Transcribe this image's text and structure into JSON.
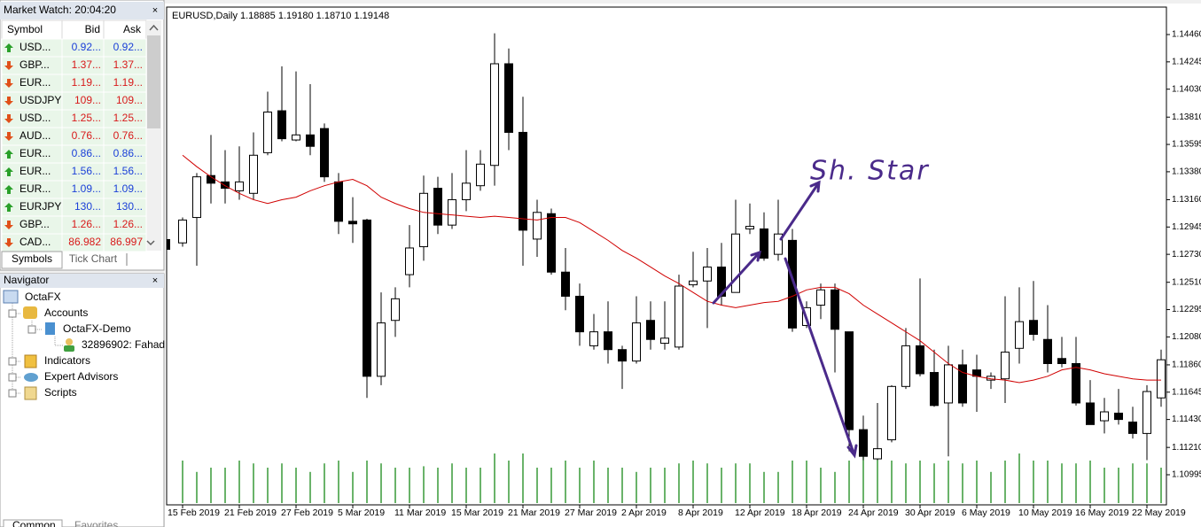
{
  "market_watch": {
    "title": "Market Watch: 20:04:20",
    "columns": [
      "Symbol",
      "Bid",
      "Ask"
    ],
    "rows": [
      {
        "symbol": "USD...",
        "bid": "0.92...",
        "ask": "0.92...",
        "direction": "up"
      },
      {
        "symbol": "GBP...",
        "bid": "1.37...",
        "ask": "1.37...",
        "direction": "down"
      },
      {
        "symbol": "EUR...",
        "bid": "1.19...",
        "ask": "1.19...",
        "direction": "down"
      },
      {
        "symbol": "USDJPY",
        "bid": "109...",
        "ask": "109...",
        "direction": "down"
      },
      {
        "symbol": "USD...",
        "bid": "1.25...",
        "ask": "1.25...",
        "direction": "down"
      },
      {
        "symbol": "AUD...",
        "bid": "0.76...",
        "ask": "0.76...",
        "direction": "down"
      },
      {
        "symbol": "EUR...",
        "bid": "0.86...",
        "ask": "0.86...",
        "direction": "up"
      },
      {
        "symbol": "EUR...",
        "bid": "1.56...",
        "ask": "1.56...",
        "direction": "up"
      },
      {
        "symbol": "EUR...",
        "bid": "1.09...",
        "ask": "1.09...",
        "direction": "up"
      },
      {
        "symbol": "EURJPY",
        "bid": "130...",
        "ask": "130...",
        "direction": "up"
      },
      {
        "symbol": "GBP...",
        "bid": "1.26...",
        "ask": "1.26...",
        "direction": "down"
      },
      {
        "symbol": "CAD...",
        "bid": "86.982",
        "ask": "86.997",
        "direction": "down"
      }
    ],
    "tabs": [
      "Symbols",
      "Tick Chart"
    ]
  },
  "navigator": {
    "title": "Navigator",
    "items": [
      "OctaFX",
      "Accounts",
      "OctaFX-Demo",
      "32896902: Fahad",
      "Indicators",
      "Expert Advisors",
      "Scripts"
    ],
    "tabs": [
      "Common",
      "Favorites"
    ]
  },
  "chart_data": {
    "type": "candlestick",
    "title": "EURUSD,Daily  1.18885 1.19180 1.18710 1.19148",
    "annotation": "Sh. Star",
    "categories": [
      "15 Feb 2019",
      null,
      null,
      null,
      "21 Feb 2019",
      null,
      null,
      null,
      "27 Feb 2019",
      null,
      null,
      null,
      "5 Mar 2019",
      null,
      null,
      null,
      "11 Mar 2019",
      null,
      null,
      null,
      "15 Mar 2019",
      null,
      null,
      null,
      "21 Mar 2019",
      null,
      null,
      null,
      "27 Mar 2019",
      null,
      null,
      null,
      "2 Apr 2019",
      null,
      null,
      null,
      "8 Apr 2019",
      null,
      null,
      null,
      "12 Apr 2019",
      null,
      null,
      null,
      "18 Apr 2019",
      null,
      null,
      null,
      "24 Apr 2019",
      null,
      null,
      null,
      "30 Apr 2019",
      null,
      null,
      null,
      "6 May 2019",
      null,
      null,
      null,
      "10 May 2019",
      null,
      null,
      null,
      "16 May 2019",
      null,
      null,
      null,
      "22 May 2019",
      null
    ],
    "open": [
      1.1282,
      1.1302,
      1.1335,
      1.133,
      1.1323,
      1.1321,
      1.1353,
      1.1386,
      1.1363,
      1.1367,
      1.1372,
      1.133,
      1.1299,
      1.13,
      1.1177,
      1.1221,
      1.1257,
      1.1279,
      1.1325,
      1.1296,
      1.1316,
      1.1327,
      1.1343,
      1.1423,
      1.1369,
      1.1285,
      1.1305,
      1.1259,
      1.124,
      1.1201,
      1.1212,
      1.1198,
      1.1189,
      1.1221,
      1.1203,
      1.12,
      1.1249,
      1.1252,
      1.1263,
      1.1243,
      1.1293,
      1.1293,
      1.1273,
      1.1284,
      1.1217,
      1.1233,
      1.1245,
      1.1212,
      1.1135,
      1.1112,
      1.1127,
      1.1169,
      1.1201,
      1.118,
      1.1156,
      1.1186,
      1.1182,
      1.1174,
      1.1175,
      1.1199,
      1.1221,
      1.1206,
      1.1191,
      1.1187,
      1.1156,
      1.1142,
      1.1148,
      1.1141,
      1.1132,
      1.116
    ],
    "high": [
      1.1302,
      1.1337,
      1.1367,
      1.1355,
      1.1358,
      1.1369,
      1.1401,
      1.1421,
      1.1417,
      1.1407,
      1.1376,
      1.1337,
      1.1318,
      1.1301,
      1.1243,
      1.1247,
      1.1296,
      1.1335,
      1.1334,
      1.1337,
      1.1355,
      1.1355,
      1.1447,
      1.1435,
      1.1397,
      1.1316,
      1.1309,
      1.1278,
      1.125,
      1.1226,
      1.1236,
      1.1201,
      1.124,
      1.1236,
      1.1236,
      1.1257,
      1.1275,
      1.1278,
      1.1282,
      1.1316,
      1.1313,
      1.1306,
      1.1316,
      1.1293,
      1.1236,
      1.125,
      1.125,
      1.1212,
      1.1146,
      1.1156,
      1.117,
      1.1215,
      1.1254,
      1.1198,
      1.1201,
      1.1198,
      1.1194,
      1.118,
      1.124,
      1.1247,
      1.1252,
      1.1233,
      1.1208,
      1.1208,
      1.1174,
      1.116,
      1.1167,
      1.1153,
      1.117,
      1.1198
    ],
    "low": [
      1.1279,
      1.1264,
      1.1313,
      1.1313,
      1.1316,
      1.1316,
      1.1351,
      1.1362,
      1.1362,
      1.1351,
      1.133,
      1.1289,
      1.1282,
      1.116,
      1.117,
      1.1208,
      1.1247,
      1.1268,
      1.1289,
      1.1293,
      1.1307,
      1.1323,
      1.1327,
      1.1355,
      1.1264,
      1.1271,
      1.1257,
      1.1229,
      1.1201,
      1.1198,
      1.1187,
      1.1167,
      1.1187,
      1.1198,
      1.1198,
      1.1198,
      1.1247,
      1.1215,
      1.1233,
      1.1243,
      1.1289,
      1.1268,
      1.1268,
      1.1212,
      1.1215,
      1.1222,
      1.118,
      1.1118,
      1.1111,
      1.1111,
      1.1125,
      1.1167,
      1.1177,
      1.1153,
      1.1114,
      1.1153,
      1.1149,
      1.1167,
      1.1156,
      1.1187,
      1.1205,
      1.118,
      1.1184,
      1.1154,
      1.1139,
      1.1132,
      1.1139,
      1.1128,
      1.1111,
      1.1153
    ],
    "close": [
      1.13,
      1.1334,
      1.1329,
      1.1325,
      1.133,
      1.1351,
      1.1385,
      1.1364,
      1.1367,
      1.1358,
      1.1334,
      1.1299,
      1.1297,
      1.1177,
      1.1219,
      1.1238,
      1.1278,
      1.1321,
      1.1296,
      1.1316,
      1.1329,
      1.1344,
      1.1423,
      1.1369,
      1.1292,
      1.1306,
      1.1259,
      1.124,
      1.1212,
      1.1212,
      1.1198,
      1.1189,
      1.1219,
      1.1206,
      1.1207,
      1.1248,
      1.1252,
      1.1263,
      1.124,
      1.1289,
      1.1295,
      1.127,
      1.1289,
      1.1215,
      1.1231,
      1.1245,
      1.1214,
      1.1135,
      1.1114,
      1.112,
      1.1169,
      1.1201,
      1.1179,
      1.1154,
      1.1186,
      1.1156,
      1.1177,
      1.1177,
      1.1196,
      1.122,
      1.121,
      1.1187,
      1.1187,
      1.1156,
      1.1139,
      1.1149,
      1.1143,
      1.1132,
      1.1165,
      1.119
    ],
    "ma": [
      1.1351,
      1.1342,
      1.1334,
      1.1327,
      1.1321,
      1.1316,
      1.1313,
      1.1316,
      1.1318,
      1.1323,
      1.1327,
      1.133,
      1.1332,
      1.1327,
      1.1318,
      1.1313,
      1.1309,
      1.1306,
      1.1305,
      1.1304,
      1.1303,
      1.1302,
      1.1303,
      1.1302,
      1.1301,
      1.13,
      1.1302,
      1.1302,
      1.1298,
      1.1291,
      1.1284,
      1.1276,
      1.127,
      1.1263,
      1.1256,
      1.125,
      1.1243,
      1.1236,
      1.1233,
      1.1231,
      1.1233,
      1.1235,
      1.1236,
      1.124,
      1.1245,
      1.1247,
      1.1247,
      1.1242,
      1.1233,
      1.1226,
      1.1219,
      1.1212,
      1.1205,
      1.1196,
      1.1187,
      1.118,
      1.1177,
      1.1175,
      1.1174,
      1.1172,
      1.1174,
      1.1177,
      1.1182,
      1.1184,
      1.1182,
      1.1179,
      1.1177,
      1.1175,
      1.1174,
      1.1174
    ],
    "ma_color": "#d00000",
    "volume": [
      30,
      22,
      25,
      25,
      30,
      28,
      25,
      28,
      25,
      22,
      28,
      30,
      22,
      30,
      28,
      25,
      25,
      26,
      25,
      28,
      25,
      25,
      35,
      30,
      35,
      25,
      25,
      30,
      25,
      30,
      25,
      25,
      22,
      25,
      25,
      28,
      30,
      28,
      25,
      28,
      28,
      22,
      22,
      30,
      30,
      25,
      22,
      30,
      38,
      35,
      30,
      28,
      30,
      28,
      30,
      28,
      30,
      22,
      30,
      35,
      30,
      30,
      28,
      28,
      30,
      25,
      25,
      28,
      28,
      25
    ],
    "volume_color": "#1a8a1a",
    "ylim": [
      1.10995,
      1.1446
    ],
    "yticks": [
      {
        "value": 1.1446,
        "label": "1.14460"
      },
      1.14245,
      {
        "value": 1.1403,
        "label": "1.14030"
      },
      {
        "value": 1.1381,
        "label": "1.13810"
      },
      1.13595,
      {
        "value": 1.1338,
        "label": "1.13380"
      },
      {
        "value": 1.1316,
        "label": "1.13160"
      },
      1.12945,
      {
        "value": 1.1273,
        "label": "1.12730"
      },
      {
        "value": 1.1251,
        "label": "1.12510"
      },
      1.12295,
      {
        "value": 1.1208,
        "label": "1.12080"
      },
      {
        "value": 1.1186,
        "label": "1.11860"
      },
      1.11645,
      {
        "value": 1.1143,
        "label": "1.11430"
      },
      {
        "value": 1.1121,
        "label": "1.11210"
      },
      1.10995
    ]
  }
}
